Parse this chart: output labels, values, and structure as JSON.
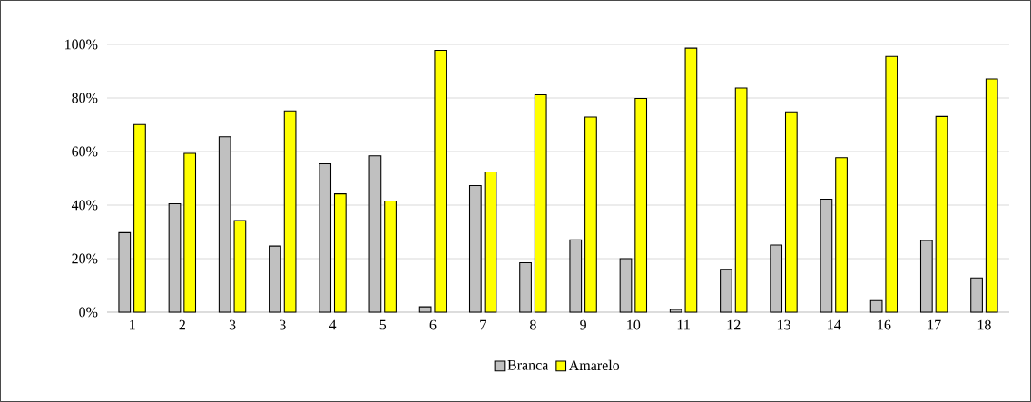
{
  "chart_data": {
    "type": "bar",
    "categories": [
      "1",
      "2",
      "3",
      "3",
      "4",
      "5",
      "6",
      "7",
      "8",
      "9",
      "10",
      "11",
      "12",
      "13",
      "14",
      "16",
      "17",
      "18"
    ],
    "series": [
      {
        "name": "Branca",
        "color": "#c0c0c0",
        "values": [
          29.7,
          40.5,
          65.5,
          24.7,
          55.4,
          58.4,
          2.0,
          47.3,
          18.5,
          27.0,
          20.0,
          1.0,
          16.0,
          25.1,
          42.2,
          4.3,
          26.8,
          12.8
        ]
      },
      {
        "name": "Amarelo",
        "color": "#ffff00",
        "values": [
          70.1,
          59.3,
          34.2,
          75.2,
          44.2,
          41.5,
          97.8,
          52.4,
          81.2,
          72.9,
          79.8,
          98.6,
          83.7,
          74.8,
          57.7,
          95.5,
          73.1,
          87.1
        ]
      }
    ],
    "ylim": [
      0,
      100
    ],
    "yticks": [
      {
        "value": 0,
        "label": "0%"
      },
      {
        "value": 20,
        "label": "20%"
      },
      {
        "value": 40,
        "label": "40%"
      },
      {
        "value": 60,
        "label": "60%"
      },
      {
        "value": 80,
        "label": "80%"
      },
      {
        "value": 100,
        "label": "100%"
      }
    ],
    "grid": "y",
    "legend": "bottom"
  }
}
